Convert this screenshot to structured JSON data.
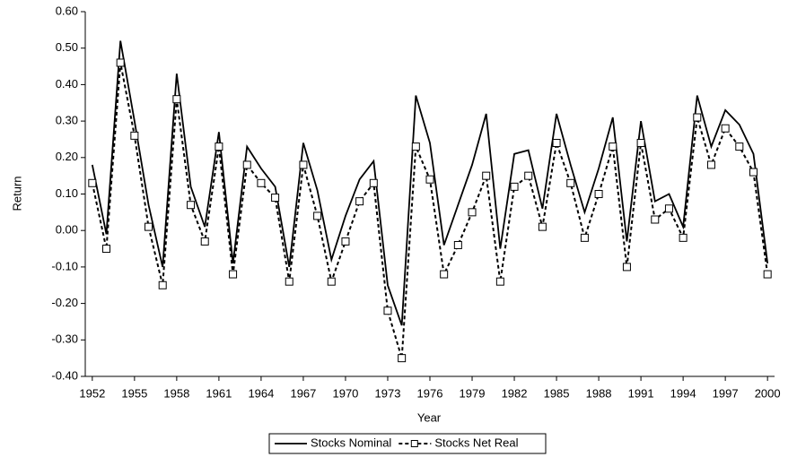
{
  "chart_data": {
    "type": "line",
    "x_label": "Year",
    "y_label": "Return",
    "x": [
      1952,
      1953,
      1954,
      1955,
      1956,
      1957,
      1958,
      1959,
      1960,
      1961,
      1962,
      1963,
      1964,
      1965,
      1966,
      1967,
      1968,
      1969,
      1970,
      1971,
      1972,
      1973,
      1974,
      1975,
      1976,
      1977,
      1978,
      1979,
      1980,
      1981,
      1982,
      1983,
      1984,
      1985,
      1986,
      1987,
      1988,
      1989,
      1990,
      1991,
      1992,
      1993,
      1994,
      1995,
      1996,
      1997,
      1998,
      1999,
      2000
    ],
    "series": [
      {
        "name": "Stocks Nominal",
        "color": "#000000",
        "line_style": "solid",
        "marker": "none",
        "values": [
          0.18,
          -0.01,
          0.52,
          0.3,
          0.07,
          -0.1,
          0.43,
          0.12,
          0.01,
          0.27,
          -0.09,
          0.23,
          0.17,
          0.12,
          -0.1,
          0.24,
          0.11,
          -0.08,
          0.04,
          0.14,
          0.19,
          -0.15,
          -0.26,
          0.37,
          0.24,
          -0.04,
          0.07,
          0.18,
          0.32,
          -0.05,
          0.21,
          0.22,
          0.06,
          0.32,
          0.18,
          0.05,
          0.17,
          0.31,
          -0.03,
          0.3,
          0.08,
          0.1,
          0.01,
          0.37,
          0.23,
          0.33,
          0.29,
          0.21,
          -0.09
        ]
      },
      {
        "name": "Stocks Net Real",
        "color": "#000000",
        "line_style": "dashed",
        "marker": "square",
        "values": [
          0.13,
          -0.05,
          0.46,
          0.26,
          0.01,
          -0.15,
          0.36,
          0.07,
          -0.03,
          0.23,
          -0.12,
          0.18,
          0.13,
          0.09,
          -0.14,
          0.18,
          0.04,
          -0.14,
          -0.03,
          0.08,
          0.13,
          -0.22,
          -0.35,
          0.23,
          0.14,
          -0.12,
          -0.04,
          0.05,
          0.15,
          -0.14,
          0.12,
          0.15,
          0.01,
          0.24,
          0.13,
          -0.02,
          0.1,
          0.23,
          -0.1,
          0.24,
          0.03,
          0.06,
          -0.02,
          0.31,
          0.18,
          0.28,
          0.23,
          0.16,
          -0.12
        ]
      }
    ],
    "xlim": [
      1951.5,
      2000.5
    ],
    "xticks": [
      1952,
      1955,
      1958,
      1961,
      1964,
      1967,
      1970,
      1973,
      1976,
      1979,
      1982,
      1985,
      1988,
      1991,
      1994,
      1997,
      2000
    ],
    "ylim": [
      -0.4,
      0.6
    ],
    "yticks": [
      {
        "value": -0.4,
        "label": "-0.40"
      },
      {
        "value": -0.3,
        "label": "-0.30"
      },
      {
        "value": -0.2,
        "label": "-0.20"
      },
      {
        "value": -0.1,
        "label": "-0.10"
      },
      {
        "value": 0,
        "label": "0.00"
      },
      {
        "value": 0.1,
        "label": "0.10"
      },
      {
        "value": 0.2,
        "label": "0.20"
      },
      {
        "value": 0.3,
        "label": "0.30"
      },
      {
        "value": 0.4,
        "label": "0.40"
      },
      {
        "value": 0.5,
        "label": "0.50"
      },
      {
        "value": 0.6,
        "label": "0.60"
      }
    ],
    "grid": false,
    "legend": "bottom"
  }
}
